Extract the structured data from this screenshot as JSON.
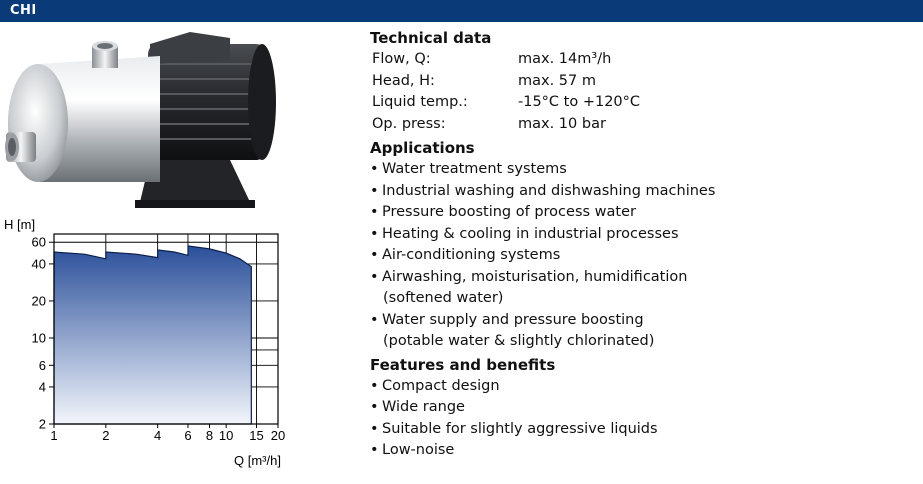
{
  "header": {
    "title": "CHI"
  },
  "technical": {
    "heading": "Technical data",
    "rows": [
      {
        "label": "Flow, Q:",
        "value": "max. 14m³/h"
      },
      {
        "label": "Head, H:",
        "value": "max. 57 m"
      },
      {
        "label": "Liquid temp.:",
        "value": "-15°C to +120°C"
      },
      {
        "label": "Op. press:",
        "value": "max. 10 bar"
      }
    ]
  },
  "applications": {
    "heading": "Applications",
    "items": [
      {
        "line1": "Water treatment systems"
      },
      {
        "line1": "Industrial washing and dishwashing machines"
      },
      {
        "line1": "Pressure boosting of process water"
      },
      {
        "line1": "Heating & cooling in industrial processes"
      },
      {
        "line1": "Air-conditioning systems"
      },
      {
        "line1": "Airwashing, moisturisation, humidification",
        "line2": "(softened water)"
      },
      {
        "line1": "Water supply and pressure boosting",
        "line2": "(potable water & slightly chlorinated)"
      }
    ]
  },
  "features": {
    "heading": "Features and benefits",
    "items": [
      "Compact design",
      "Wide range",
      "Suitable for slightly aggressive liquids",
      "Low-noise"
    ]
  },
  "colors": {
    "header_bg": "#0a3a78",
    "curve_fill_top": "#2a4f9a",
    "curve_fill_bottom": "#f2f5fb"
  },
  "chart_data": {
    "type": "area",
    "x_scale": "log",
    "y_scale": "log",
    "xlabel": "Q [m³/h]",
    "ylabel": "H [m]",
    "xlim": [
      1,
      20
    ],
    "ylim": [
      2,
      70
    ],
    "x_ticks": [
      {
        "value": 1,
        "label": "1"
      },
      {
        "value": 2,
        "label": "2"
      },
      {
        "value": 4,
        "label": "4"
      },
      {
        "value": 6,
        "label": "6"
      },
      {
        "value": 8,
        "label": "8"
      },
      {
        "value": 10,
        "label": "10"
      },
      {
        "value": 15,
        "label": "15"
      },
      {
        "value": 20,
        "label": "20"
      }
    ],
    "y_ticks": [
      {
        "value": 2,
        "label": "2"
      },
      {
        "value": 4,
        "label": "4"
      },
      {
        "value": 6,
        "label": "6"
      },
      {
        "value": 10,
        "label": "10"
      },
      {
        "value": 20,
        "label": "20"
      },
      {
        "value": 40,
        "label": "40"
      },
      {
        "value": 60,
        "label": "60"
      }
    ],
    "x_grid": [
      1,
      2,
      4,
      6,
      8,
      10,
      15,
      20
    ],
    "y_grid": [
      2,
      4,
      6,
      8,
      10,
      20,
      40,
      60
    ],
    "grid": true,
    "envelope": [
      {
        "x": 1,
        "y": 50
      },
      {
        "x": 1.5,
        "y": 48
      },
      {
        "x": 2,
        "y": 44
      },
      {
        "x": 2,
        "y": 50
      },
      {
        "x": 3,
        "y": 48
      },
      {
        "x": 4,
        "y": 45
      },
      {
        "x": 4,
        "y": 52
      },
      {
        "x": 5,
        "y": 50
      },
      {
        "x": 6,
        "y": 47
      },
      {
        "x": 6,
        "y": 56
      },
      {
        "x": 8,
        "y": 53
      },
      {
        "x": 10,
        "y": 49
      },
      {
        "x": 12,
        "y": 44
      },
      {
        "x": 14,
        "y": 38
      },
      {
        "x": 14,
        "y": 2
      }
    ]
  }
}
